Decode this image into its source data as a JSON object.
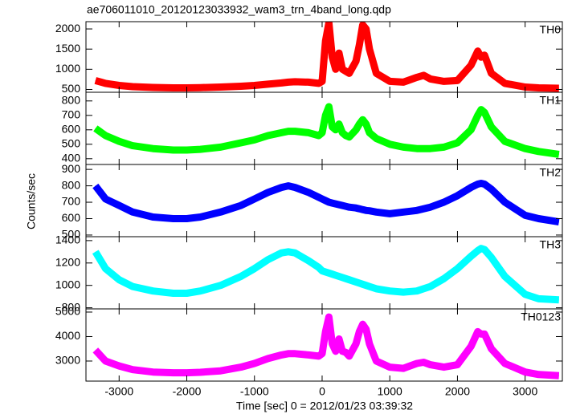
{
  "chart_data": [
    {
      "type": "line",
      "title": "ae706011010_20120123033932_wam3_trn_4band_long.qdp",
      "label": "TH0",
      "color": "#ff0000",
      "x": [
        -3350,
        -3200,
        -3000,
        -2800,
        -2500,
        -2200,
        -2000,
        -1800,
        -1500,
        -1200,
        -1000,
        -800,
        -600,
        -500,
        -400,
        -200,
        -50,
        0,
        50,
        100,
        150,
        200,
        250,
        300,
        350,
        400,
        500,
        550,
        600,
        650,
        700,
        800,
        1000,
        1200,
        1400,
        1500,
        1600,
        1800,
        2000,
        2200,
        2300,
        2350,
        2400,
        2500,
        2700,
        3000,
        3200,
        3500
      ],
      "values": [
        720,
        650,
        600,
        570,
        550,
        540,
        540,
        545,
        560,
        580,
        600,
        630,
        660,
        680,
        690,
        680,
        650,
        700,
        1700,
        2150,
        1300,
        1000,
        1400,
        1000,
        950,
        900,
        1200,
        1600,
        2100,
        2000,
        1500,
        900,
        700,
        680,
        800,
        850,
        760,
        700,
        720,
        1100,
        1450,
        1300,
        1350,
        900,
        650,
        560,
        540,
        530
      ],
      "xlim": [
        -3490,
        3550
      ],
      "xticks": [
        -3000,
        -2000,
        -1000,
        0,
        1000,
        2000,
        3000
      ],
      "ylim": [
        430,
        2180
      ],
      "yticks": [
        500,
        1000,
        1500,
        2000
      ]
    },
    {
      "type": "line",
      "label": "TH1",
      "color": "#00ff00",
      "x": [
        -3350,
        -3200,
        -3000,
        -2800,
        -2500,
        -2200,
        -2000,
        -1800,
        -1500,
        -1200,
        -1000,
        -800,
        -600,
        -500,
        -400,
        -200,
        -50,
        0,
        50,
        100,
        150,
        200,
        250,
        300,
        350,
        400,
        500,
        550,
        600,
        650,
        700,
        800,
        1000,
        1200,
        1400,
        1500,
        1600,
        1800,
        2000,
        2200,
        2300,
        2350,
        2400,
        2500,
        2700,
        3000,
        3200,
        3500
      ],
      "values": [
        610,
        560,
        520,
        490,
        470,
        460,
        460,
        465,
        480,
        510,
        530,
        560,
        580,
        590,
        590,
        580,
        560,
        580,
        700,
        760,
        620,
        600,
        640,
        580,
        560,
        550,
        600,
        640,
        670,
        640,
        580,
        540,
        500,
        480,
        470,
        470,
        470,
        480,
        510,
        600,
        700,
        740,
        720,
        620,
        520,
        470,
        450,
        430
      ],
      "xlim": [
        -3490,
        3550
      ],
      "xticks": [
        -3000,
        -2000,
        -1000,
        0,
        1000,
        2000,
        3000
      ],
      "ylim": [
        360,
        860
      ],
      "yticks": [
        400,
        500,
        600,
        700,
        800
      ]
    },
    {
      "type": "line",
      "label": "TH2",
      "color": "#0000ff",
      "ylabel": "Counts/sec",
      "x": [
        -3350,
        -3200,
        -3000,
        -2800,
        -2500,
        -2200,
        -2000,
        -1800,
        -1500,
        -1200,
        -1000,
        -800,
        -600,
        -500,
        -400,
        -200,
        -50,
        0,
        50,
        100,
        150,
        200,
        250,
        300,
        350,
        400,
        500,
        550,
        600,
        650,
        700,
        800,
        1000,
        1200,
        1400,
        1500,
        1600,
        1800,
        2000,
        2200,
        2300,
        2350,
        2400,
        2500,
        2700,
        3000,
        3200,
        3500
      ],
      "values": [
        800,
        720,
        680,
        640,
        610,
        600,
        600,
        610,
        640,
        680,
        720,
        760,
        790,
        800,
        790,
        760,
        730,
        720,
        710,
        700,
        695,
        690,
        685,
        680,
        675,
        670,
        665,
        660,
        655,
        650,
        648,
        640,
        630,
        640,
        650,
        660,
        670,
        700,
        740,
        790,
        810,
        815,
        810,
        780,
        700,
        620,
        600,
        580
      ],
      "xlim": [
        -3490,
        3550
      ],
      "xticks": [
        -3000,
        -2000,
        -1000,
        0,
        1000,
        2000,
        3000
      ],
      "ylim": [
        490,
        930
      ],
      "yticks": [
        500,
        600,
        700,
        800,
        900
      ]
    },
    {
      "type": "line",
      "label": "TH3",
      "color": "#00ffff",
      "x": [
        -3350,
        -3200,
        -3000,
        -2800,
        -2500,
        -2200,
        -2000,
        -1800,
        -1500,
        -1200,
        -1000,
        -800,
        -600,
        -500,
        -400,
        -200,
        -50,
        0,
        50,
        100,
        150,
        200,
        250,
        300,
        350,
        400,
        500,
        550,
        600,
        650,
        700,
        800,
        1000,
        1200,
        1400,
        1500,
        1600,
        1800,
        2000,
        2200,
        2300,
        2350,
        2400,
        2500,
        2700,
        3000,
        3200,
        3500
      ],
      "values": [
        1300,
        1150,
        1050,
        990,
        950,
        930,
        930,
        950,
        1000,
        1080,
        1150,
        1230,
        1290,
        1300,
        1290,
        1220,
        1160,
        1130,
        1120,
        1110,
        1100,
        1090,
        1080,
        1070,
        1060,
        1050,
        1030,
        1020,
        1010,
        1000,
        990,
        970,
        950,
        940,
        950,
        970,
        990,
        1060,
        1150,
        1260,
        1310,
        1330,
        1320,
        1250,
        1080,
        920,
        880,
        870
      ],
      "xlim": [
        -3490,
        3550
      ],
      "xticks": [
        -3000,
        -2000,
        -1000,
        0,
        1000,
        2000,
        3000
      ],
      "ylim": [
        790,
        1435
      ],
      "yticks": [
        800,
        1000,
        1200,
        1400
      ]
    },
    {
      "type": "line",
      "label": "TH0123",
      "color": "#ff00ff",
      "xlabel": "Time [sec] 0 = 2012/01/23 03:39:32",
      "x": [
        -3350,
        -3200,
        -3000,
        -2800,
        -2500,
        -2200,
        -2000,
        -1800,
        -1500,
        -1200,
        -1000,
        -800,
        -600,
        -500,
        -400,
        -200,
        -50,
        0,
        50,
        100,
        150,
        200,
        250,
        300,
        350,
        400,
        500,
        550,
        600,
        650,
        700,
        800,
        1000,
        1200,
        1400,
        1500,
        1600,
        1800,
        2000,
        2200,
        2300,
        2350,
        2400,
        2500,
        2700,
        3000,
        3200,
        3500
      ],
      "values": [
        3450,
        3000,
        2800,
        2650,
        2550,
        2520,
        2520,
        2540,
        2600,
        2750,
        2900,
        3100,
        3250,
        3300,
        3300,
        3250,
        3200,
        3300,
        4200,
        4800,
        3700,
        3400,
        3900,
        3400,
        3350,
        3200,
        3700,
        4200,
        4500,
        4300,
        3700,
        3000,
        2750,
        2700,
        2900,
        2950,
        2850,
        2750,
        2850,
        3600,
        4200,
        4100,
        4100,
        3500,
        2900,
        2550,
        2450,
        2400
      ],
      "xlim": [
        -3490,
        3550
      ],
      "xticks": [
        -3000,
        -2000,
        -1000,
        0,
        1000,
        2000,
        3000
      ],
      "ylim": [
        2180,
        5130
      ],
      "yticks": [
        3000,
        4000,
        5000
      ]
    }
  ]
}
